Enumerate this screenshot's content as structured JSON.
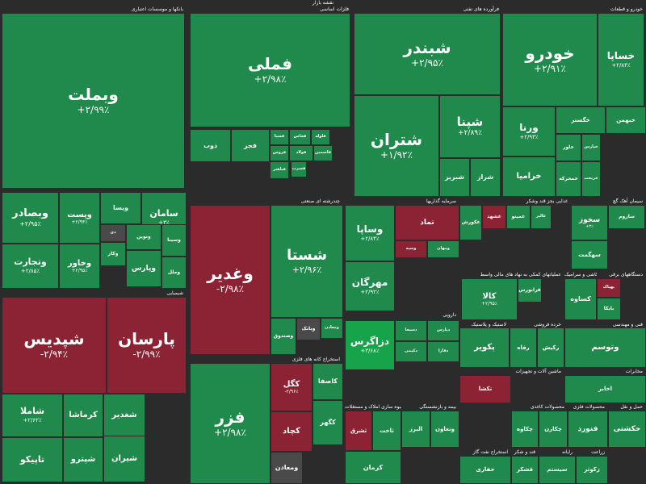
{
  "title": "نقشه بازار",
  "chart_data": {
    "type": "treemap",
    "colors": {
      "up": "#1f8a4c",
      "up_strong": "#16a34a",
      "down": "#8b2335",
      "neutral": "#4a4a4a"
    },
    "sectors": [
      {
        "key": "banks",
        "name": "بانکها و موسسات اعتباری",
        "tiles": [
          {
            "symbol": "وبملت",
            "change": "+۲/۹۹٪",
            "value": 2.99
          },
          {
            "symbol": "وبصادر",
            "change": "+۲/۹۵٪",
            "value": 2.95
          },
          {
            "symbol": "وپست",
            "change": "+۲/۹۴٪",
            "value": 2.94
          },
          {
            "symbol": "ویسا",
            "change": "",
            "value": 2.9
          },
          {
            "symbol": "سامان",
            "change": "+۳٪",
            "value": 3
          },
          {
            "symbol": "وتجارت",
            "change": "+۲/۸۵٪",
            "value": 2.85
          },
          {
            "symbol": "دی",
            "change": "",
            "value": 0
          },
          {
            "symbol": "وخاور",
            "change": "+۲/۹۵٪",
            "value": 2.95
          },
          {
            "symbol": "ونوین",
            "change": "",
            "value": 2.9
          },
          {
            "symbol": "وکار",
            "change": "",
            "value": 2.9
          },
          {
            "symbol": "وسینا",
            "change": "",
            "value": 2.9
          },
          {
            "symbol": "وپارس",
            "change": "",
            "value": 2.9
          },
          {
            "symbol": "وملل",
            "change": "",
            "value": 2.9
          }
        ]
      },
      {
        "key": "metals",
        "name": "فلزات اساسی",
        "tiles": [
          {
            "symbol": "فملی",
            "change": "+۲/۹۸٪",
            "value": 2.98
          },
          {
            "symbol": "ذوب",
            "change": "",
            "value": 2.95
          },
          {
            "symbol": "فجر",
            "change": "",
            "value": 2.9
          },
          {
            "symbol": "فسپا",
            "change": "",
            "value": 2.9
          },
          {
            "symbol": "فخاس",
            "change": "",
            "value": 2.9
          },
          {
            "symbol": "فولاد",
            "change": "",
            "value": 2.9
          },
          {
            "symbol": "فاسمین",
            "change": "",
            "value": 2.9
          },
          {
            "symbol": "فروس",
            "change": "",
            "value": 2.9
          },
          {
            "symbol": "فباهنر",
            "change": "",
            "value": 2.9
          },
          {
            "symbol": "فسرب",
            "change": "",
            "value": 2.9
          },
          {
            "symbol": "فلوله",
            "change": "",
            "value": 2.9
          }
        ]
      },
      {
        "key": "oil",
        "name": "فرآورده های نفتی",
        "tiles": [
          {
            "symbol": "شبندر",
            "change": "+۲/۹۵٪",
            "value": 2.95
          },
          {
            "symbol": "شتران",
            "change": "+۱/۹۲٪",
            "value": 1.92
          },
          {
            "symbol": "شپنا",
            "change": "+۲/۸۹٪",
            "value": 2.89
          },
          {
            "symbol": "شبریز",
            "change": "",
            "value": 2.9
          },
          {
            "symbol": "شراز",
            "change": "",
            "value": 2.9
          }
        ]
      },
      {
        "key": "auto",
        "name": "خودرو و قطعات",
        "tiles": [
          {
            "symbol": "خودرو",
            "change": "+۲/۹۱٪",
            "value": 2.91
          },
          {
            "symbol": "خساپا",
            "change": "+۲/۸۴٪",
            "value": 2.84
          },
          {
            "symbol": "ورنا",
            "change": "+۲/۹۳٪",
            "value": 2.93
          },
          {
            "symbol": "خگستر",
            "change": "",
            "value": 2.9
          },
          {
            "symbol": "خبهمن",
            "change": "",
            "value": 2.9
          },
          {
            "symbol": "خاور",
            "change": "",
            "value": 2.9
          },
          {
            "symbol": "خرامیا",
            "change": "",
            "value": 2.9
          },
          {
            "symbol": "خپارس",
            "change": "",
            "value": 2.9
          },
          {
            "symbol": "خمحرکه",
            "change": "",
            "value": 2.9
          },
          {
            "symbol": "خریخت",
            "change": "",
            "value": 2.9
          }
        ]
      },
      {
        "key": "chem",
        "name": "شیمیایی",
        "tiles": [
          {
            "symbol": "شپدیس",
            "change": "-۲/۹۴٪",
            "value": -2.94
          },
          {
            "symbol": "پارسان",
            "change": "-۲/۹۹٪",
            "value": -2.99
          },
          {
            "symbol": "شاملا",
            "change": "+۲/۶۲٪",
            "value": 2.62
          },
          {
            "symbol": "کرماشا",
            "change": "",
            "value": 2.9
          },
          {
            "symbol": "شغدیر",
            "change": "",
            "value": 2.9
          },
          {
            "symbol": "تاپیکو",
            "change": "",
            "value": 2.9
          },
          {
            "symbol": "شپترو",
            "change": "",
            "value": 2.9
          },
          {
            "symbol": "شیران",
            "change": "",
            "value": 2.9
          }
        ]
      },
      {
        "key": "multi",
        "name": "چندرشته ای صنعتی",
        "tiles": [
          {
            "symbol": "وغدیر",
            "change": "-۲/۹۸٪",
            "value": -2.98
          },
          {
            "symbol": "شستا",
            "change": "+۲/۹۶٪",
            "value": 2.96
          },
          {
            "symbol": "وصندوق",
            "change": "",
            "value": 2.9
          },
          {
            "symbol": "وبانک",
            "change": "",
            "value": 0
          },
          {
            "symbol": "ومعادن",
            "change": "",
            "value": 2.9
          }
        ]
      },
      {
        "key": "mining",
        "name": "استخراج کانه های فلزی",
        "tiles": [
          {
            "symbol": "فزر",
            "change": "+۲/۹۸٪",
            "value": 2.98
          },
          {
            "symbol": "کگل",
            "change": "-۲/۹۶٪",
            "value": -2.96
          },
          {
            "symbol": "کچاد",
            "change": "",
            "value": -2.9
          },
          {
            "symbol": "کاصفا",
            "change": "",
            "value": 2.9
          },
          {
            "symbol": "کگهر",
            "change": "",
            "value": 2.9
          },
          {
            "symbol": "ومعادن",
            "change": "",
            "value": 0
          }
        ]
      },
      {
        "key": "invest",
        "name": "سرمایه گذاریها",
        "tiles": [
          {
            "symbol": "وساپا",
            "change": "+۲/۸۴٪",
            "value": 2.84
          },
          {
            "symbol": "تماد",
            "change": "",
            "value": -2.9
          },
          {
            "symbol": "مهرگان",
            "change": "+۲/۹۲٪",
            "value": 2.92
          },
          {
            "symbol": "وسپه",
            "change": "",
            "value": -2.9
          },
          {
            "symbol": "ومهان",
            "change": "",
            "value": 2.9
          }
        ]
      },
      {
        "key": "pharma",
        "name": "دارویی",
        "tiles": [
          {
            "symbol": "دزاگرس",
            "change": "+۳/۶۸٪",
            "value": 3.68
          },
          {
            "symbol": "دسبحا",
            "change": "",
            "value": 2.9
          },
          {
            "symbol": "دپارس",
            "change": "",
            "value": 2.9
          },
          {
            "symbol": "دکیمی",
            "change": "",
            "value": 2.9
          },
          {
            "symbol": "دفارا",
            "change": "",
            "value": 2.9
          }
        ]
      },
      {
        "key": "food",
        "name": "غذایی بجز قند وشکر",
        "tiles": [
          {
            "symbol": "غکورش",
            "change": "",
            "value": 2.9
          },
          {
            "symbol": "غشهد",
            "change": "",
            "value": -2.9
          },
          {
            "symbol": "غمینو",
            "change": "",
            "value": 2.9
          },
          {
            "symbol": "غالبر",
            "change": "",
            "value": 2.9
          }
        ]
      },
      {
        "key": "cement",
        "name": "سیمان آهک گچ",
        "tiles": [
          {
            "symbol": "سخوز",
            "change": "+۳٪",
            "value": 3
          },
          {
            "symbol": "سهگمت",
            "change": "",
            "value": 2.9
          },
          {
            "symbol": "ساروم",
            "change": "",
            "value": 2.9
          }
        ]
      },
      {
        "key": "trade",
        "name": "عملیاتهای کمکی به نهاد های مالی واسط",
        "tiles": [
          {
            "symbol": "کالا",
            "change": "+۲/۹۵٪",
            "value": 2.95
          },
          {
            "symbol": "فرابورس",
            "change": "",
            "value": 2.9
          }
        ]
      },
      {
        "key": "tile",
        "name": "کاشی و سرامیک",
        "tiles": [
          {
            "symbol": "کساوه",
            "change": "",
            "value": 2.9
          }
        ]
      },
      {
        "key": "electric",
        "name": "دستگاههای برقی",
        "tiles": [
          {
            "symbol": "بهپاک",
            "change": "",
            "value": -2.9
          },
          {
            "symbol": "بایکا",
            "change": "",
            "value": 2.9
          }
        ]
      },
      {
        "key": "rubber",
        "name": "لاستیک و پلاستیک",
        "tiles": [
          {
            "symbol": "پکویر",
            "change": "",
            "value": 2.9
          }
        ]
      },
      {
        "key": "retail",
        "name": "خرده فروشی",
        "tiles": [
          {
            "symbol": "رفاه",
            "change": "",
            "value": 2.9
          },
          {
            "symbol": "رکیش",
            "change": "",
            "value": 2.9
          }
        ]
      },
      {
        "key": "construction",
        "name": "انبوه سازی املاک و مستغلات",
        "tiles": [
          {
            "symbol": "ثشرق",
            "change": "",
            "value": -2.9
          },
          {
            "symbol": "ثاخت",
            "change": "",
            "value": 2.9
          },
          {
            "symbol": "کرمان",
            "change": "",
            "value": 2.9
          }
        ]
      },
      {
        "key": "insurance",
        "name": "بیمه و بازنشستگی",
        "tiles": [
          {
            "symbol": "البرز",
            "change": "",
            "value": 2.9
          },
          {
            "symbol": "وتعاون",
            "change": "",
            "value": 2.9
          }
        ]
      },
      {
        "key": "paper",
        "name": "محصولات کاغذی",
        "tiles": [
          {
            "symbol": "چکاوه",
            "change": "",
            "value": 2.9
          },
          {
            "symbol": "چکارن",
            "change": "",
            "value": 2.9
          }
        ]
      },
      {
        "key": "mineral",
        "name": "محصولات فلزی",
        "tiles": [
          {
            "symbol": "فنورد",
            "change": "",
            "value": 2.9
          }
        ]
      },
      {
        "key": "transport",
        "name": "حمل و نقل",
        "tiles": [
          {
            "symbol": "حکشتی",
            "change": "",
            "value": 2.9
          },
          {
            "symbol": "حپترو",
            "change": "",
            "value": 2.9
          }
        ]
      },
      {
        "key": "gas",
        "name": "استخراج نفت گاز",
        "tiles": [
          {
            "symbol": "حفاری",
            "change": "",
            "value": 2.9
          }
        ]
      },
      {
        "key": "sugar",
        "name": "قند و شکر",
        "tiles": [
          {
            "symbol": "قشکر",
            "change": "",
            "value": 2.9
          }
        ]
      },
      {
        "key": "it",
        "name": "رایانه",
        "tiles": [
          {
            "symbol": "سیستم",
            "change": "",
            "value": 2.9
          }
        ]
      },
      {
        "key": "agri",
        "name": "زراعت",
        "tiles": [
          {
            "symbol": "زکوثر",
            "change": "",
            "value": 2.9
          }
        ]
      },
      {
        "key": "machinery",
        "name": "ماشین آلات و تجهیزات",
        "tiles": [
          {
            "symbol": "تکشا",
            "change": "",
            "value": -2.9
          }
        ]
      },
      {
        "key": "tech",
        "name": "فنی و مهندسی",
        "tiles": [
          {
            "symbol": "وتوسم",
            "change": "",
            "value": 2.9
          }
        ]
      },
      {
        "key": "hotel",
        "name": "مخابرات",
        "tiles": [
          {
            "symbol": "اخابر",
            "change": "",
            "value": 2.9
          }
        ]
      }
    ]
  }
}
